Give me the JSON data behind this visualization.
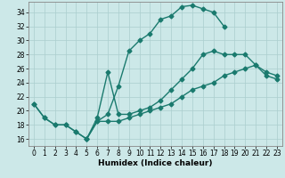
{
  "bg_color": "#cce8e8",
  "line_color": "#1a7a6e",
  "xlabel": "Humidex (Indice chaleur)",
  "xlim": [
    -0.5,
    23.5
  ],
  "ylim": [
    15.0,
    35.5
  ],
  "xticks": [
    0,
    1,
    2,
    3,
    4,
    5,
    6,
    7,
    8,
    9,
    10,
    11,
    12,
    13,
    14,
    15,
    16,
    17,
    18,
    19,
    20,
    21,
    22,
    23
  ],
  "yticks": [
    16,
    18,
    20,
    22,
    24,
    26,
    28,
    30,
    32,
    34
  ],
  "grid_color": "#aacece",
  "curve1_x": [
    0,
    1,
    2,
    3,
    4,
    5,
    6,
    7,
    8,
    9,
    10,
    11,
    12,
    13,
    14,
    15,
    16,
    17,
    18
  ],
  "curve1_y": [
    21,
    19,
    18,
    18,
    17,
    16,
    18.5,
    19.5,
    23.5,
    28.5,
    30,
    31,
    33,
    33.5,
    34.8,
    35.0,
    34.5,
    34.0,
    32
  ],
  "curve2_x": [
    5,
    6,
    7,
    8,
    9,
    10,
    11,
    12,
    13,
    14,
    15,
    16,
    17,
    18,
    19,
    20,
    21,
    22,
    23
  ],
  "curve2_y": [
    16.0,
    19.0,
    25.5,
    19.5,
    19.5,
    20.0,
    20.5,
    21.5,
    23.0,
    24.5,
    26.0,
    28.0,
    28.5,
    28.0,
    28.0,
    28.0,
    26.5,
    25.5,
    25.0
  ],
  "curve3_x": [
    0,
    1,
    2,
    3,
    4,
    5,
    6,
    7,
    8,
    9,
    10,
    11,
    12,
    13,
    14,
    15,
    16,
    17,
    18,
    19,
    20,
    21,
    22,
    23
  ],
  "curve3_y": [
    21,
    19,
    18,
    18,
    17,
    16,
    18.5,
    18.5,
    18.5,
    19.0,
    19.5,
    20.0,
    20.5,
    21.0,
    22.0,
    23.0,
    23.5,
    24.0,
    25.0,
    25.5,
    26.0,
    26.5,
    25.0,
    24.5
  ],
  "marker": "D",
  "markersize": 2.5,
  "linewidth": 1.0,
  "tick_fontsize": 5.5,
  "label_fontsize": 6.5
}
